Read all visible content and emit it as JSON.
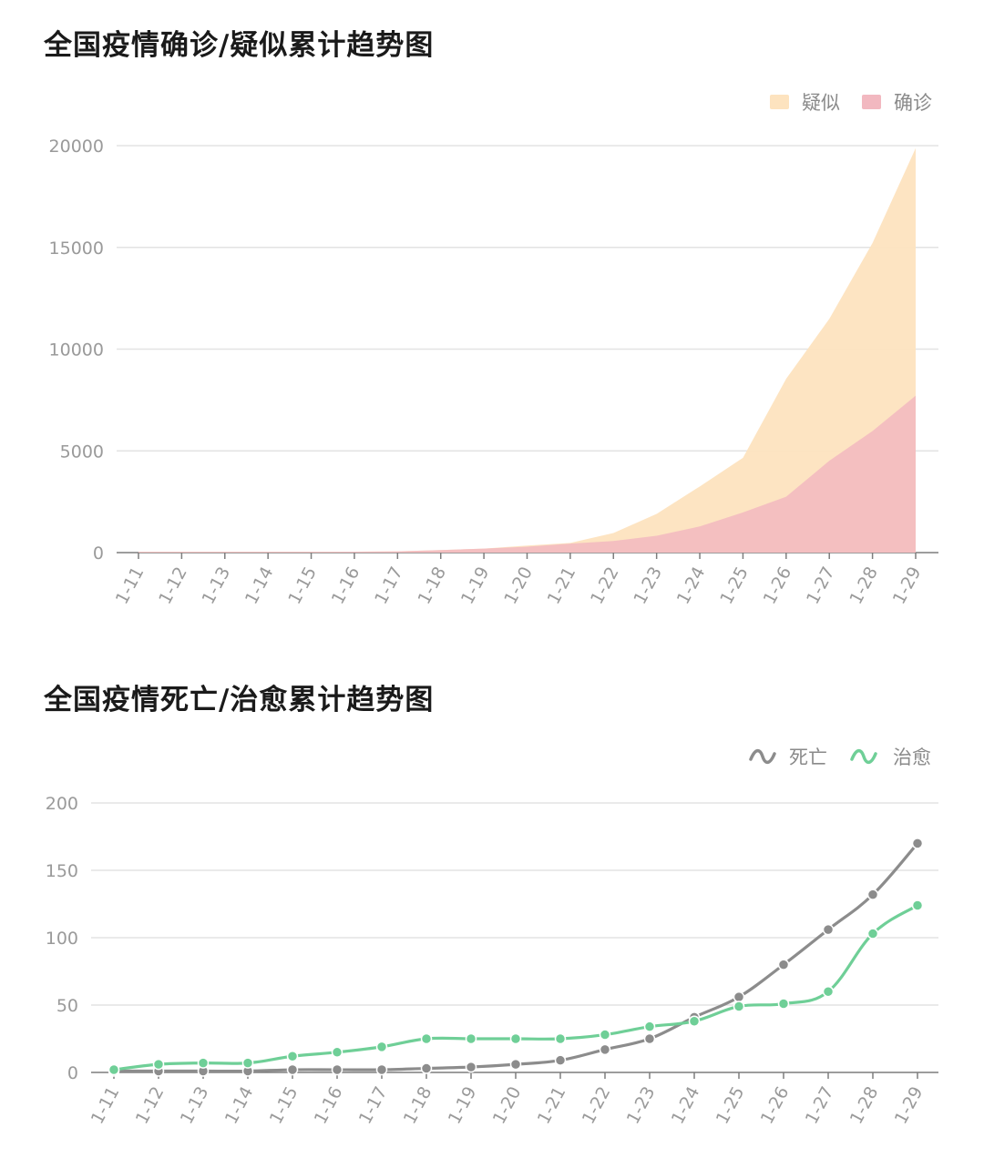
{
  "chart_data": [
    {
      "type": "area",
      "title": "全国疫情确诊/疑似累计趋势图",
      "categories": [
        "1-11",
        "1-12",
        "1-13",
        "1-14",
        "1-15",
        "1-16",
        "1-17",
        "1-18",
        "1-19",
        "1-20",
        "1-21",
        "1-22",
        "1-23",
        "1-24",
        "1-25",
        "1-26",
        "1-27",
        "1-28",
        "1-29"
      ],
      "stacked": true,
      "series": [
        {
          "name": "确诊",
          "color": "#f2b8c0",
          "values": [
            41,
            41,
            41,
            41,
            41,
            45,
            62,
            121,
            198,
            291,
            440,
            571,
            830,
            1287,
            1975,
            2744,
            4515,
            5974,
            7711
          ]
        },
        {
          "name": "疑似",
          "color": "#fde3bf",
          "values": [
            0,
            0,
            0,
            0,
            0,
            0,
            0,
            0,
            0,
            54,
            37,
            393,
            1072,
            1965,
            2684,
            5794,
            6973,
            9239,
            12167
          ]
        }
      ],
      "yticks": [
        0,
        5000,
        10000,
        15000,
        20000
      ],
      "ylim": [
        0,
        20000
      ],
      "grid": true,
      "legend": "top-right",
      "legend_order": [
        "疑似",
        "确诊"
      ]
    },
    {
      "type": "line",
      "title": "全国疫情死亡/治愈累计趋势图",
      "categories": [
        "1-11",
        "1-12",
        "1-13",
        "1-14",
        "1-15",
        "1-16",
        "1-17",
        "1-18",
        "1-19",
        "1-20",
        "1-21",
        "1-22",
        "1-23",
        "1-24",
        "1-25",
        "1-26",
        "1-27",
        "1-28",
        "1-29"
      ],
      "series": [
        {
          "name": "死亡",
          "color": "#8c8c8c",
          "values": [
            1,
            1,
            1,
            1,
            2,
            2,
            2,
            3,
            4,
            6,
            9,
            17,
            25,
            41,
            56,
            80,
            106,
            132,
            170
          ]
        },
        {
          "name": "治愈",
          "color": "#6fcf97",
          "values": [
            2,
            6,
            7,
            7,
            12,
            15,
            19,
            25,
            25,
            25,
            25,
            28,
            34,
            38,
            49,
            51,
            60,
            103,
            124
          ]
        }
      ],
      "yticks": [
        0,
        50,
        100,
        150,
        200
      ],
      "ylim": [
        0,
        200
      ],
      "grid": true,
      "legend": "top-right",
      "legend_order": [
        "死亡",
        "治愈"
      ]
    }
  ]
}
